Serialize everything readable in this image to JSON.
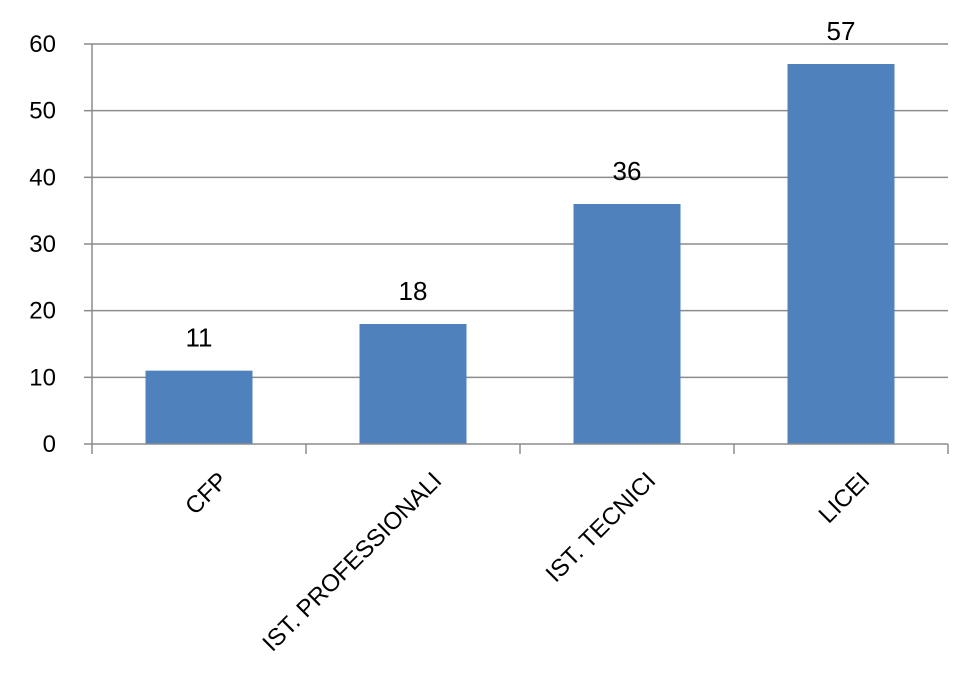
{
  "chart_data": {
    "type": "bar",
    "title": "",
    "xlabel": "",
    "ylabel": "",
    "categories": [
      "CFP",
      "IST. PROFESSIONALI",
      "IST. TECNICI",
      "LICEI"
    ],
    "series": [
      {
        "values": [
          11,
          18,
          36,
          57
        ]
      }
    ],
    "ylim": [
      0,
      60
    ],
    "yticks": [
      "0",
      "10",
      "20",
      "30",
      "40",
      "50",
      "60"
    ],
    "data_labels": [
      "11",
      "18",
      "36",
      "57"
    ],
    "grid": true,
    "legend": "none",
    "colors": {
      "bar": "#4f81bd",
      "gridline": "#8c8c8c",
      "text": "#000000"
    }
  }
}
